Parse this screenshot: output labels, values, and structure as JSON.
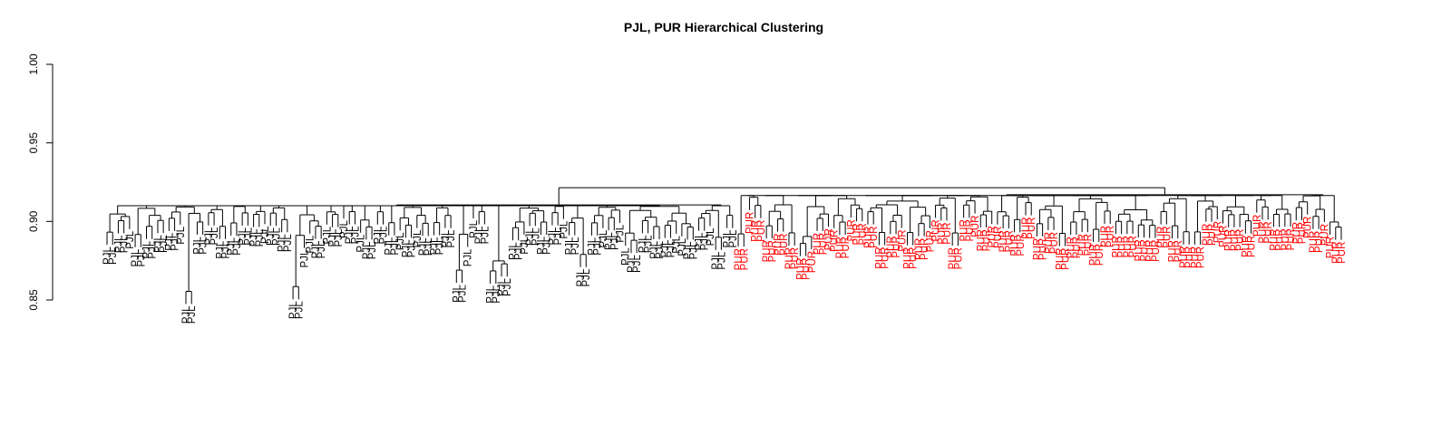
{
  "chart_data": {
    "type": "dendrogram",
    "title": "PJL, PUR Hierarchical Clustering",
    "xlabel": "",
    "ylabel": "",
    "ylim": [
      0.85,
      1.0
    ],
    "yticks": [
      "0.85",
      "0.90",
      "0.95",
      "1.00"
    ],
    "colors": {
      "PJL": "#000000",
      "PUR": "#ff0000",
      "branch": "#000000"
    },
    "root_height": 0.9215,
    "groups": [
      {
        "name": "PJL",
        "leaf_count": 112,
        "merge_height": 0.9105,
        "leaf_label": "PJL",
        "notable_merge_heights": [
          0.8555,
          0.8585,
          0.869,
          0.8685,
          0.873,
          0.879,
          0.888
        ]
      },
      {
        "name": "PUR",
        "leaf_count": 108,
        "merge_height": 0.917,
        "leaf_label": "PUR",
        "notable_merge_heights": [
          0.886,
          0.893,
          0.895
        ]
      }
    ]
  }
}
